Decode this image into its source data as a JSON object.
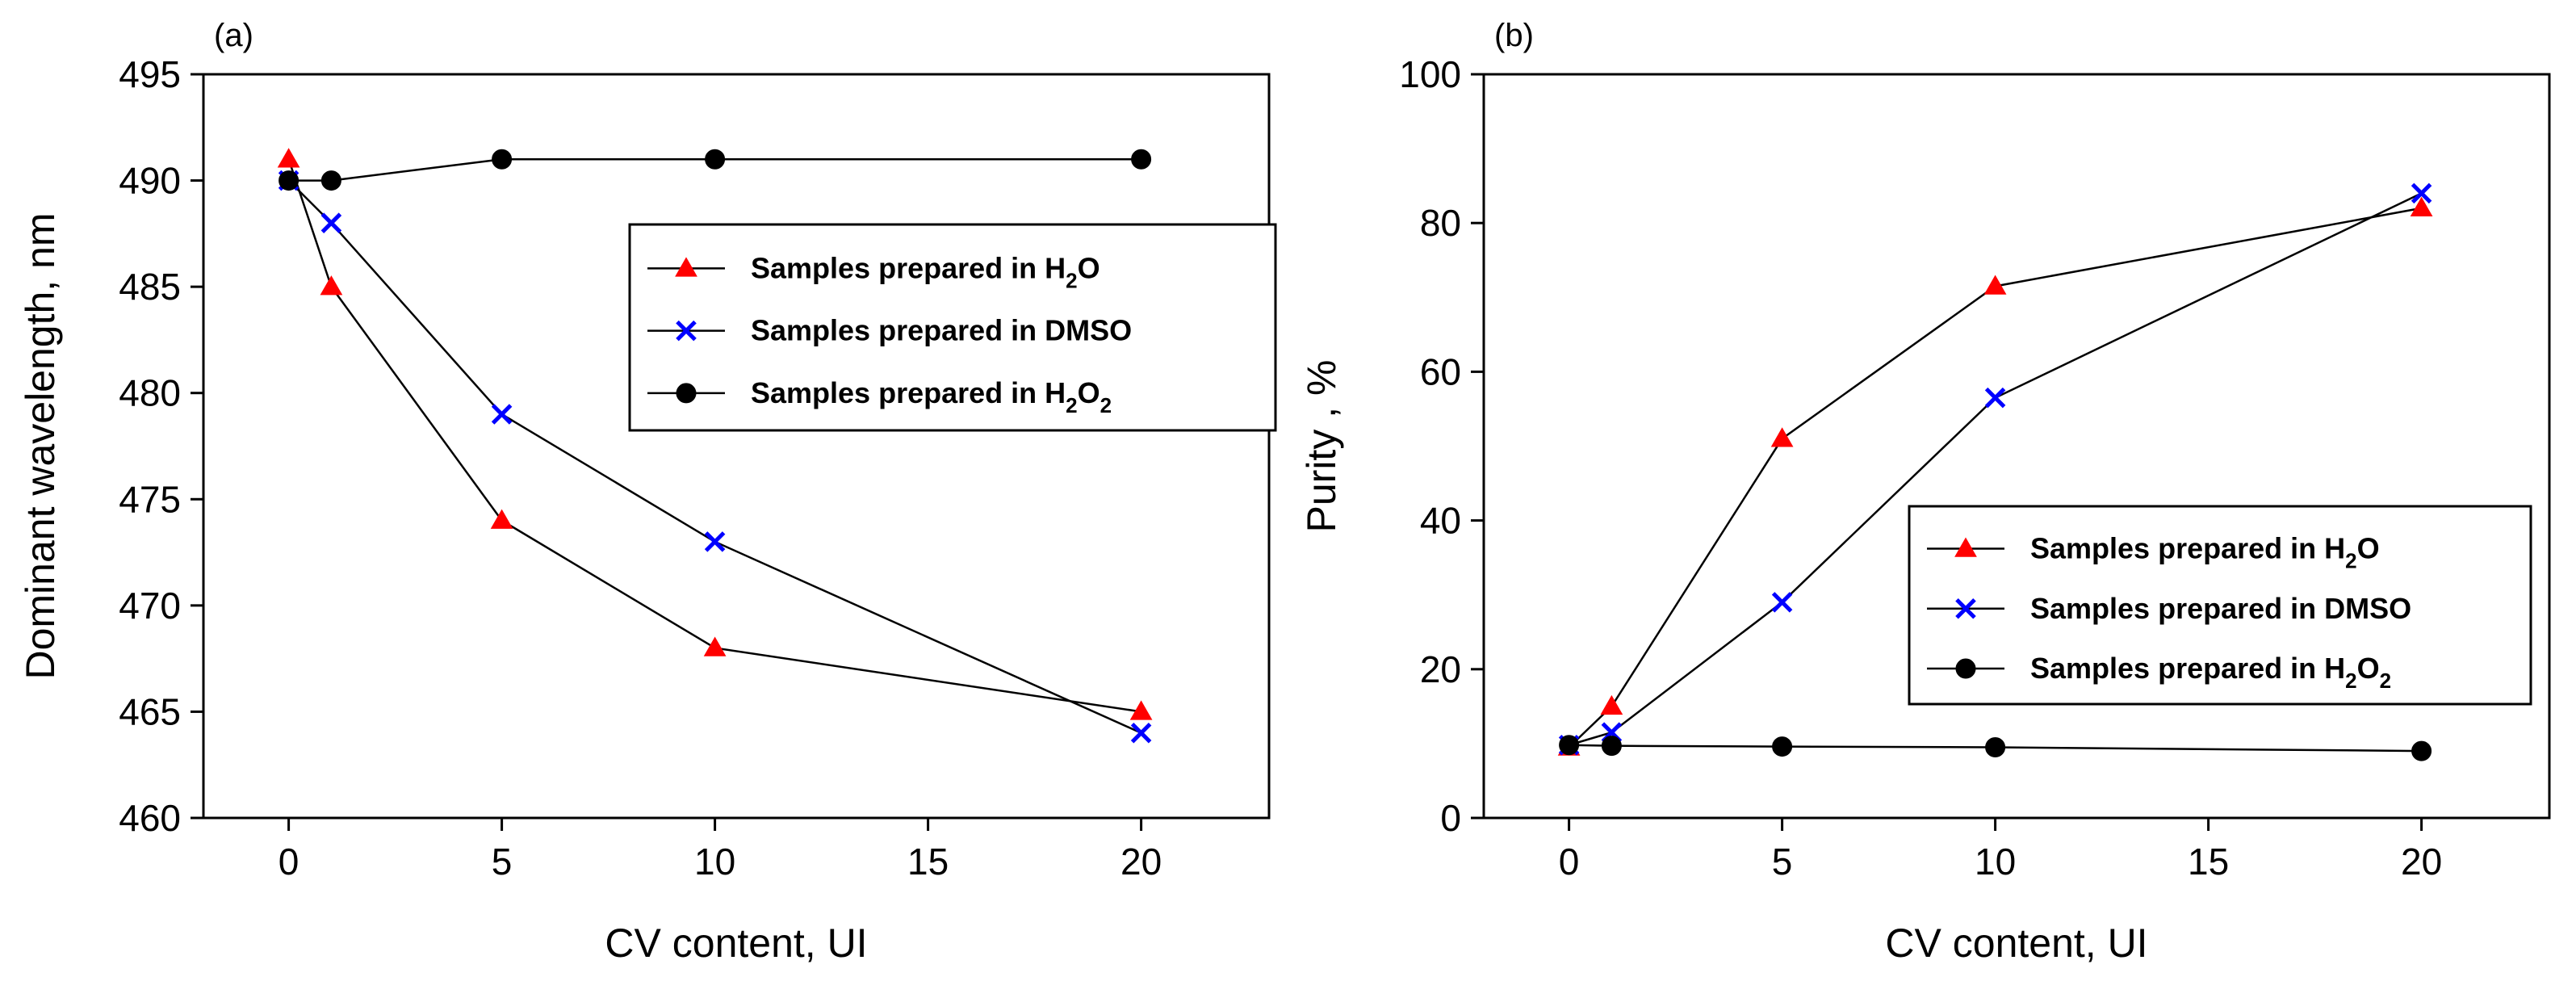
{
  "colors": {
    "h2o": "#ff0000",
    "dmso": "#0000ff",
    "h2o2": "#000000",
    "line": "#000000"
  },
  "chart_data": [
    {
      "type": "line",
      "panel_label": "(a)",
      "xlabel": "CV content, UI",
      "ylabel": "Dominant wavelength, nm",
      "xlim": [
        -2,
        23
      ],
      "ylim": [
        460,
        495
      ],
      "xticks": [
        0,
        5,
        10,
        15,
        20
      ],
      "yticks": [
        460,
        465,
        470,
        475,
        480,
        485,
        490,
        495
      ],
      "legend_position": "right, upper-middle",
      "x": [
        0,
        1,
        5,
        10,
        20
      ],
      "series": [
        {
          "key": "h2o",
          "name": "Samples prepared in H2O",
          "label_main": "Samples prepared in H",
          "label_sub": "2",
          "label_tail": "O",
          "marker": "triangle",
          "values": [
            491,
            485,
            474,
            468,
            465
          ]
        },
        {
          "key": "dmso",
          "name": "Samples prepared in DMSO",
          "label_main": "Samples prepared in DMSO",
          "label_sub": "",
          "label_tail": "",
          "marker": "x",
          "values": [
            490,
            488,
            479,
            473,
            464
          ]
        },
        {
          "key": "h2o2",
          "name": "Samples prepared in H2O2",
          "label_main": "Samples prepared in H",
          "label_sub": "2",
          "label_tail": "O",
          "label_sub2": "2",
          "marker": "circle",
          "values": [
            490,
            490,
            491,
            491,
            491
          ]
        }
      ]
    },
    {
      "type": "line",
      "panel_label": "(b)",
      "xlabel": "CV content, UI",
      "ylabel": "Purity , %",
      "xlim": [
        -2,
        23
      ],
      "ylim": [
        0,
        100
      ],
      "xticks": [
        0,
        5,
        10,
        15,
        20
      ],
      "yticks": [
        0,
        20,
        40,
        60,
        80,
        100
      ],
      "legend_position": "right, lower-middle",
      "x": [
        0,
        1,
        5,
        10,
        20
      ],
      "series": [
        {
          "key": "h2o",
          "name": "Samples prepared in H2O",
          "label_main": "Samples prepared in H",
          "label_sub": "2",
          "label_tail": "O",
          "marker": "triangle",
          "values": [
            9.5,
            15,
            51,
            71.5,
            82
          ]
        },
        {
          "key": "dmso",
          "name": "Samples prepared in DMSO",
          "label_main": "Samples prepared in DMSO",
          "label_sub": "",
          "label_tail": "",
          "marker": "x",
          "values": [
            9.8,
            11.5,
            29,
            56.5,
            84
          ]
        },
        {
          "key": "h2o2",
          "name": "Samples prepared in H2O2",
          "label_main": "Samples prepared in H",
          "label_sub": "2",
          "label_tail": "O",
          "label_sub2": "2",
          "marker": "circle",
          "values": [
            9.8,
            9.7,
            9.6,
            9.5,
            9
          ]
        }
      ]
    }
  ]
}
